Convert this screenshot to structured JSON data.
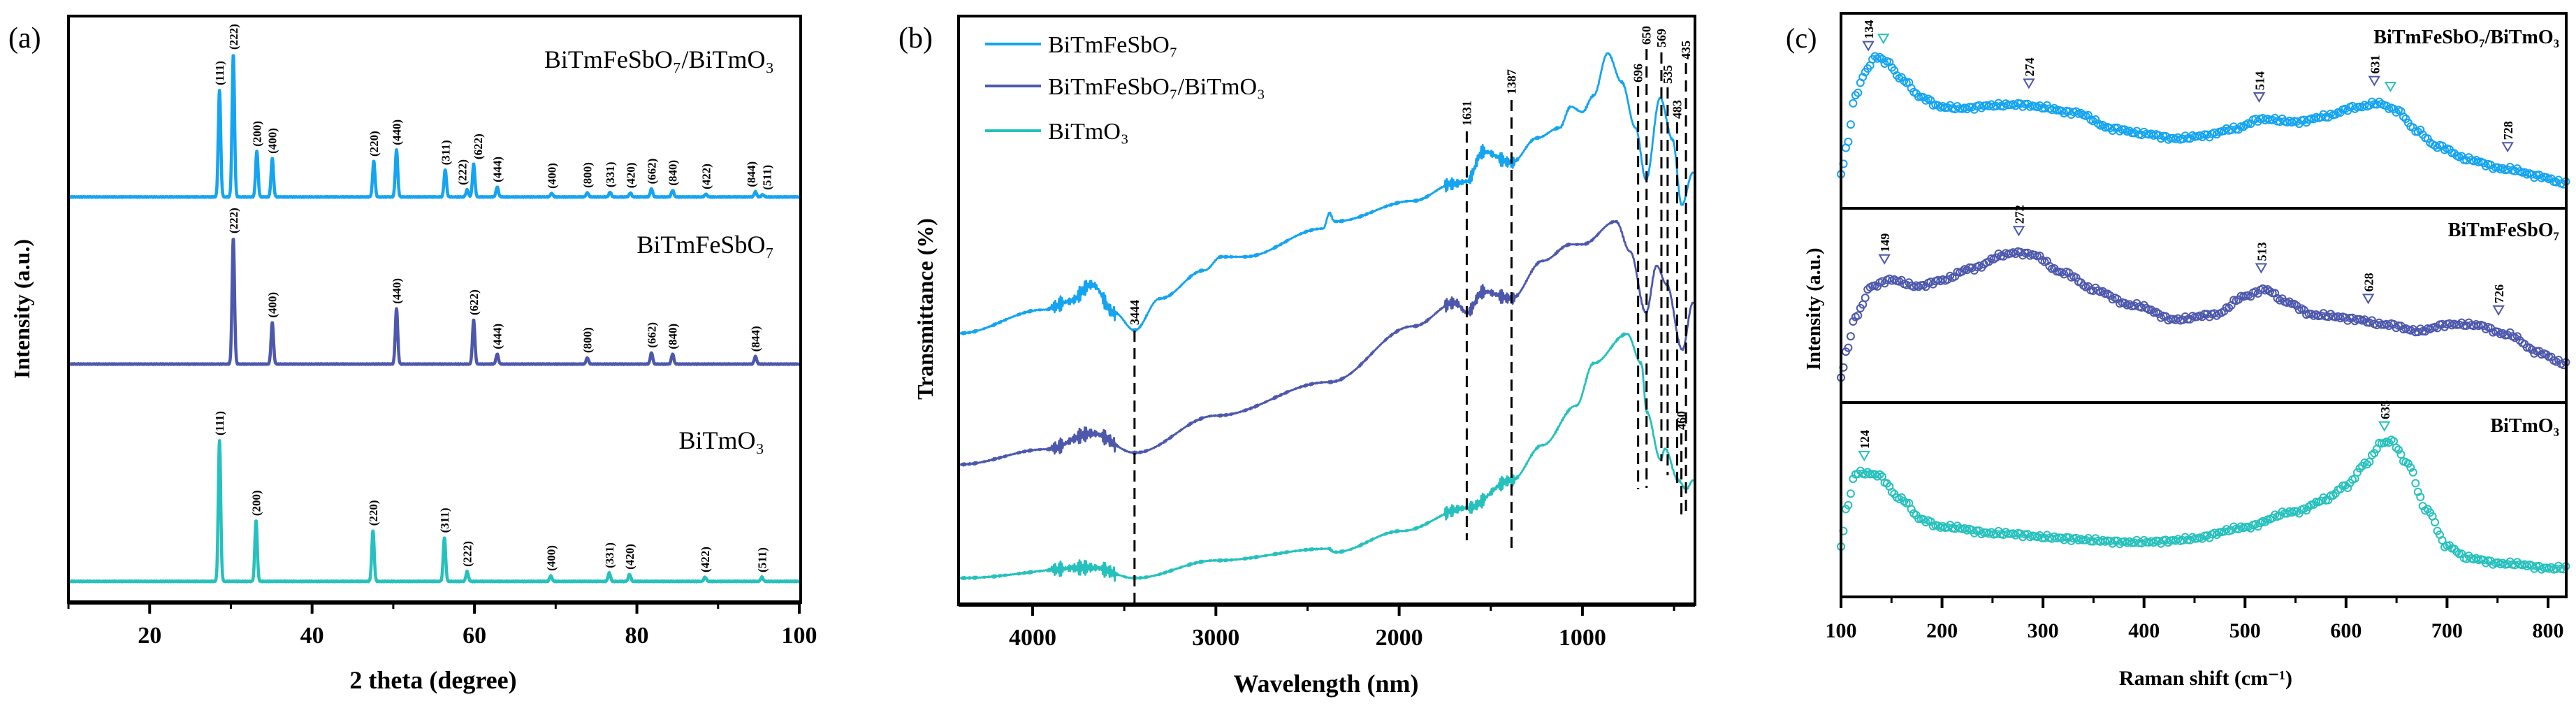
{
  "colors": {
    "light_blue": "#14a4f2",
    "indigo": "#4d58ad",
    "teal": "#26c1bd",
    "axis": "#000000"
  },
  "chart_data": [
    {
      "panel": "(a)",
      "type": "line",
      "xlabel": "2 theta (degree)",
      "ylabel": "Intensity (a.u.)",
      "xlim": [
        10,
        100
      ],
      "xticks": [
        20,
        40,
        60,
        80,
        100
      ],
      "series": [
        {
          "name": "BiTmFeSbO₇/BiTmO₃",
          "color": "#14a4f2",
          "peaks": [
            {
              "hkl": "(111)",
              "two_theta": 28.6,
              "intensity": 75
            },
            {
              "hkl": "(222)",
              "two_theta": 30.3,
              "intensity": 100
            },
            {
              "hkl": "(200)",
              "two_theta": 33.2,
              "intensity": 32
            },
            {
              "hkl": "(400)",
              "two_theta": 35.1,
              "intensity": 27
            },
            {
              "hkl": "(220)",
              "two_theta": 47.6,
              "intensity": 25
            },
            {
              "hkl": "(440)",
              "two_theta": 50.4,
              "intensity": 33
            },
            {
              "hkl": "(311)",
              "two_theta": 56.4,
              "intensity": 19
            },
            {
              "hkl": "(222)",
              "two_theta": 59.1,
              "intensity": 5
            },
            {
              "hkl": "(622)",
              "two_theta": 59.9,
              "intensity": 23
            },
            {
              "hkl": "(444)",
              "two_theta": 62.8,
              "intensity": 7
            },
            {
              "hkl": "(400)",
              "two_theta": 69.5,
              "intensity": 2.5
            },
            {
              "hkl": "(800)",
              "two_theta": 73.9,
              "intensity": 3
            },
            {
              "hkl": "(331)",
              "two_theta": 76.7,
              "intensity": 3.3
            },
            {
              "hkl": "(420)",
              "two_theta": 79.2,
              "intensity": 2.8
            },
            {
              "hkl": "(662)",
              "two_theta": 81.8,
              "intensity": 5.7
            },
            {
              "hkl": "(840)",
              "two_theta": 84.4,
              "intensity": 4.6
            },
            {
              "hkl": "(422)",
              "two_theta": 88.5,
              "intensity": 2
            },
            {
              "hkl": "(844)",
              "two_theta": 94.6,
              "intensity": 3.6
            },
            {
              "hkl": "(511)",
              "two_theta": 95.5,
              "intensity": 1.6
            }
          ]
        },
        {
          "name": "BiTmFeSbO₇",
          "color": "#4d58ad",
          "peaks": [
            {
              "hkl": "(222)",
              "two_theta": 30.3,
              "intensity": 100
            },
            {
              "hkl": "(400)",
              "two_theta": 35.1,
              "intensity": 33
            },
            {
              "hkl": "(440)",
              "two_theta": 50.4,
              "intensity": 44
            },
            {
              "hkl": "(622)",
              "two_theta": 59.9,
              "intensity": 35
            },
            {
              "hkl": "(444)",
              "two_theta": 62.8,
              "intensity": 8
            },
            {
              "hkl": "(800)",
              "two_theta": 73.9,
              "intensity": 5
            },
            {
              "hkl": "(662)",
              "two_theta": 81.8,
              "intensity": 9
            },
            {
              "hkl": "(840)",
              "two_theta": 84.4,
              "intensity": 8
            },
            {
              "hkl": "(844)",
              "two_theta": 94.6,
              "intensity": 6
            }
          ]
        },
        {
          "name": "BiTmO₃",
          "color": "#26c1bd",
          "peaks": [
            {
              "hkl": "(111)",
              "two_theta": 28.6,
              "intensity": 100
            },
            {
              "hkl": "(200)",
              "two_theta": 33.1,
              "intensity": 43
            },
            {
              "hkl": "(220)",
              "two_theta": 47.5,
              "intensity": 36
            },
            {
              "hkl": "(311)",
              "two_theta": 56.3,
              "intensity": 31
            },
            {
              "hkl": "(222)",
              "two_theta": 59.1,
              "intensity": 7
            },
            {
              "hkl": "(400)",
              "two_theta": 69.4,
              "intensity": 4
            },
            {
              "hkl": "(331)",
              "two_theta": 76.6,
              "intensity": 6
            },
            {
              "hkl": "(420)",
              "two_theta": 79.1,
              "intensity": 5
            },
            {
              "hkl": "(422)",
              "two_theta": 88.4,
              "intensity": 3
            },
            {
              "hkl": "(511)",
              "two_theta": 95.4,
              "intensity": 3
            }
          ]
        }
      ]
    },
    {
      "panel": "(b)",
      "type": "line",
      "xlabel": "Wavelength (nm)",
      "ylabel": "Transmittance (%)",
      "xlim": [
        4400,
        390
      ],
      "ylim": [
        0,
        100
      ],
      "xticks": [
        4000,
        3000,
        2000,
        1000
      ],
      "legend_position": "top-left",
      "series": [
        {
          "name": "BiTmFeSbO₇",
          "color": "#14a4f2",
          "points": [
            [
              4400,
              46.1
            ],
            [
              3939,
              50.1
            ],
            [
              3800,
              51.5
            ],
            [
              3676,
              54.4
            ],
            [
              3554,
              49.6
            ],
            [
              3444,
              46.6
            ],
            [
              3306,
              52.0
            ],
            [
              3062,
              56.8
            ],
            [
              2971,
              59.1
            ],
            [
              2845,
              59.1
            ],
            [
              2414,
              63.9
            ],
            [
              2380,
              66.5
            ],
            [
              2353,
              65.1
            ],
            [
              1922,
              68.6
            ],
            [
              1700,
              71.5
            ],
            [
              1631,
              71.9
            ],
            [
              1541,
              77.0
            ],
            [
              1387,
              75.1
            ],
            [
              1247,
              79.3
            ],
            [
              1125,
              81.0
            ],
            [
              1064,
              84.6
            ],
            [
              1000,
              83.7
            ],
            [
              939,
              86.5
            ],
            [
              862,
              93.7
            ],
            [
              786,
              88.8
            ],
            [
              710,
              81.0
            ],
            [
              653,
              72.2
            ],
            [
              576,
              86.1
            ],
            [
              508,
              79.0
            ],
            [
              458,
              67.9
            ],
            [
              397,
              73.4
            ]
          ]
        },
        {
          "name": "BiTmFeSbO₇/BiTmO₃",
          "color": "#4d58ad",
          "points": [
            [
              4400,
              23.8
            ],
            [
              3924,
              26.4
            ],
            [
              3676,
              29.1
            ],
            [
              3444,
              25.8
            ],
            [
              3001,
              32.1
            ],
            [
              2384,
              37.8
            ],
            [
              1922,
              47.3
            ],
            [
              1693,
              51.3
            ],
            [
              1631,
              49.6
            ],
            [
              1541,
              53.2
            ],
            [
              1387,
              52.0
            ],
            [
              1217,
              58.4
            ],
            [
              1064,
              61.2
            ],
            [
              1000,
              61.2
            ],
            [
              817,
              65.1
            ],
            [
              740,
              60.0
            ],
            [
              653,
              49.6
            ],
            [
              595,
              57.6
            ],
            [
              541,
              54.4
            ],
            [
              455,
              43.3
            ],
            [
              397,
              51.3
            ]
          ]
        },
        {
          "name": "BiTmO₃",
          "color": "#26c1bd",
          "points": [
            [
              4400,
              4.5
            ],
            [
              3676,
              6.3
            ],
            [
              3444,
              4.5
            ],
            [
              3001,
              7.5
            ],
            [
              2384,
              9.5
            ],
            [
              2353,
              8.9
            ],
            [
              1987,
              12.5
            ],
            [
              1631,
              16.4
            ],
            [
              1387,
              21.1
            ],
            [
              1217,
              27.1
            ],
            [
              1034,
              33.8
            ],
            [
              939,
              41.0
            ],
            [
              756,
              46.0
            ],
            [
              679,
              41.0
            ],
            [
              649,
              32.7
            ],
            [
              573,
              24.6
            ],
            [
              550,
              26.5
            ],
            [
              477,
              21.1
            ],
            [
              433,
              19.6
            ],
            [
              397,
              21.1
            ]
          ]
        }
      ],
      "markers": [
        {
          "label": "3444",
          "x": 3444
        },
        {
          "label": "1631",
          "x": 1631
        },
        {
          "label": "1387",
          "x": 1387
        },
        {
          "label": "696",
          "x": 696
        },
        {
          "label": "650",
          "x": 650
        },
        {
          "label": "569",
          "x": 569
        },
        {
          "label": "535",
          "x": 535
        },
        {
          "label": "483",
          "x": 483
        },
        {
          "label": "460",
          "x": 460
        },
        {
          "label": "435",
          "x": 435
        }
      ]
    },
    {
      "panel": "(c)",
      "type": "scatter",
      "xlabel": "Raman shift (cm⁻¹)",
      "ylabel": "Intensity (a.u.)",
      "xlim": [
        100,
        818
      ],
      "xticks": [
        100,
        200,
        300,
        400,
        500,
        600,
        700,
        800
      ],
      "series": [
        {
          "name": "BiTmFeSbO₇/BiTmO₃",
          "color": "#14a4f2",
          "points": [
            [
              100,
              16.6
            ],
            [
              105,
              30.8
            ],
            [
              115,
              59
            ],
            [
              125,
              71
            ],
            [
              134,
              78
            ],
            [
              145,
              75
            ],
            [
              160,
              66
            ],
            [
              180,
              57
            ],
            [
              200,
              52
            ],
            [
              220,
              51
            ],
            [
              250,
              53
            ],
            [
              274,
              53
            ],
            [
              300,
              52
            ],
            [
              330,
              49
            ],
            [
              370,
              41
            ],
            [
              400,
              38
            ],
            [
              430,
              36
            ],
            [
              460,
              37
            ],
            [
              490,
              41
            ],
            [
              514,
              45.5
            ],
            [
              550,
              44.5
            ],
            [
              580,
              47
            ],
            [
              610,
              52
            ],
            [
              631,
              54
            ],
            [
              650,
              50
            ],
            [
              670,
              40
            ],
            [
              690,
              32
            ],
            [
              720,
              25
            ],
            [
              760,
              20
            ],
            [
              790,
              16.6
            ],
            [
              818,
              13
            ]
          ],
          "peaks": [
            {
              "label": "134",
              "x": 127,
              "color": "#4d58ad"
            },
            {
              "label": "",
              "x": 142,
              "color": "#26c1bd"
            },
            {
              "label": "274",
              "x": 286,
              "color": "#4d58ad"
            },
            {
              "label": "514",
              "x": 514,
              "color": "#4d58ad"
            },
            {
              "label": "631",
              "x": 628,
              "color": "#4d58ad"
            },
            {
              "label": "",
              "x": 644,
              "color": "#26c1bd"
            },
            {
              "label": "728",
              "x": 760,
              "color": "#4d58ad"
            }
          ]
        },
        {
          "name": "BiTmFeSbO₇",
          "color": "#4d58ad",
          "points": [
            [
              100,
              12
            ],
            [
              105,
              26
            ],
            [
              115,
              45
            ],
            [
              130,
              60
            ],
            [
              149,
              63
            ],
            [
              175,
              60
            ],
            [
              200,
              63
            ],
            [
              230,
              69
            ],
            [
              260,
              76
            ],
            [
              272,
              77
            ],
            [
              290,
              76
            ],
            [
              320,
              67
            ],
            [
              350,
              58
            ],
            [
              390,
              50
            ],
            [
              430,
              43
            ],
            [
              470,
              45
            ],
            [
              500,
              55
            ],
            [
              520,
              58
            ],
            [
              540,
              52
            ],
            [
              570,
              45
            ],
            [
              610,
              43
            ],
            [
              640,
              40
            ],
            [
              670,
              37
            ],
            [
              700,
              40
            ],
            [
              730,
              40
            ],
            [
              760,
              35
            ],
            [
              790,
              26
            ],
            [
              818,
              20
            ]
          ],
          "peaks": [
            {
              "label": "149",
              "x": 143,
              "color": "#4d58ad"
            },
            {
              "label": "272",
              "x": 276,
              "color": "#4d58ad"
            },
            {
              "label": "513",
              "x": 516,
              "color": "#4d58ad"
            },
            {
              "label": "628",
              "x": 622,
              "color": "#4d58ad"
            },
            {
              "label": "726",
              "x": 751,
              "color": "#4d58ad"
            }
          ]
        },
        {
          "name": "BiTmO₃",
          "color": "#26c1bd",
          "points": [
            [
              100,
              25
            ],
            [
              105,
              45
            ],
            [
              115,
              64
            ],
            [
              124,
              64
            ],
            [
              135,
              63
            ],
            [
              160,
              50
            ],
            [
              180,
              40
            ],
            [
              200,
              36
            ],
            [
              250,
              33
            ],
            [
              300,
              31
            ],
            [
              350,
              29
            ],
            [
              400,
              28
            ],
            [
              450,
              30
            ],
            [
              500,
              36
            ],
            [
              550,
              44
            ],
            [
              580,
              50
            ],
            [
              600,
              57
            ],
            [
              620,
              69
            ],
            [
              635,
              79
            ],
            [
              645,
              80
            ],
            [
              660,
              69
            ],
            [
              680,
              45
            ],
            [
              700,
              26
            ],
            [
              720,
              20
            ],
            [
              760,
              17
            ],
            [
              800,
              15
            ],
            [
              818,
              15
            ]
          ],
          "peaks": [
            {
              "label": "124",
              "x": 123,
              "color": "#26c1bd"
            },
            {
              "label": "635",
              "x": 638,
              "color": "#26c1bd"
            }
          ]
        }
      ]
    }
  ]
}
